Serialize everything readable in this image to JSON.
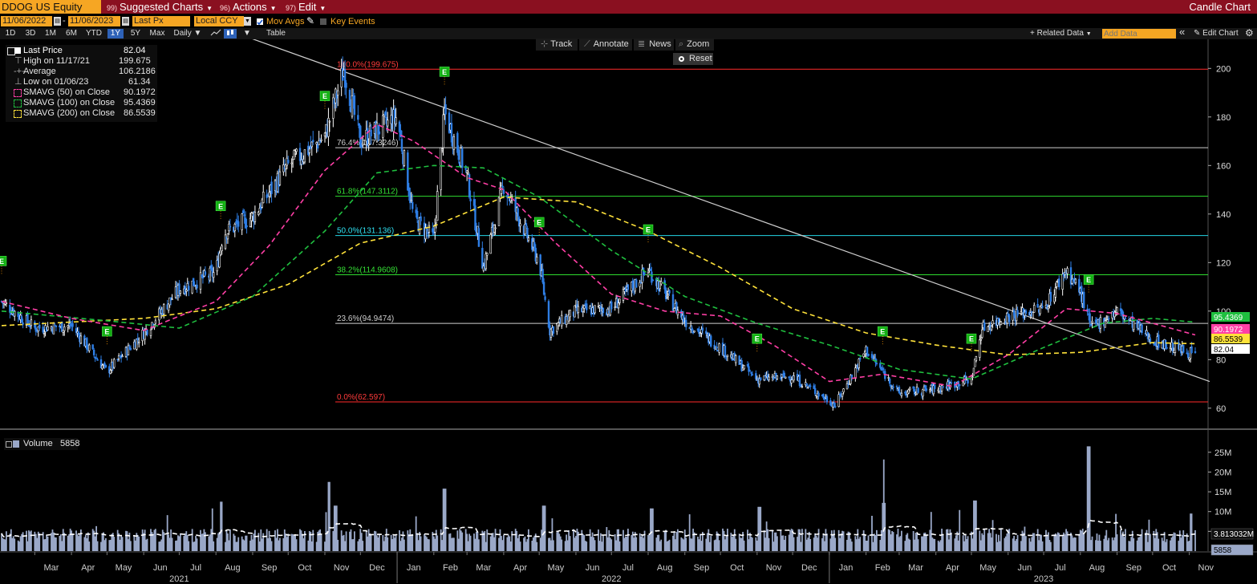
{
  "topbar": {
    "security": "DDOG US Equity",
    "menus": [
      {
        "num": "99)",
        "label": "Suggested Charts"
      },
      {
        "num": "96)",
        "label": "Actions"
      },
      {
        "num": "97)",
        "label": "Edit"
      }
    ],
    "title": "Candle Chart"
  },
  "settings": {
    "start_date": "11/06/2022",
    "end_date": "11/06/2023",
    "field": "Last Px",
    "currency": "Local CCY",
    "mov_avgs": "Mov Avgs",
    "key_events": "Key Events"
  },
  "periods": [
    "1D",
    "3D",
    "1M",
    "6M",
    "YTD",
    "1Y",
    "5Y",
    "Max"
  ],
  "selected_period": "1Y",
  "frequency": "Daily",
  "table_label": "Table",
  "right_controls": {
    "related_data": "+ Related Data",
    "add_data_placeholder": "Add Data",
    "collapse": "«",
    "edit_chart": "Edit Chart"
  },
  "tools": {
    "track": "Track",
    "annotate": "Annotate",
    "news": "News",
    "zoom": "Zoom",
    "reset": "Reset"
  },
  "legend": {
    "rows": [
      {
        "label": "Last Price",
        "value": "82.04"
      },
      {
        "label": "High on 11/17/21",
        "value": "199.675"
      },
      {
        "label": "Average",
        "value": "106.2186"
      },
      {
        "label": "Low on 01/06/23",
        "value": "61.34"
      },
      {
        "label": "SMAVG (50)  on Close",
        "value": "90.1972"
      },
      {
        "label": "SMAVG (100)  on Close",
        "value": "95.4369"
      },
      {
        "label": "SMAVG (200)  on Close",
        "value": "86.5539"
      }
    ]
  },
  "volume_legend": {
    "label": "Volume",
    "value": "5858"
  },
  "colors": {
    "up_candle": "#ffffff",
    "down_candle": "#2f7fe6",
    "sma50": "#ff3fa6",
    "sma100": "#1fbf3f",
    "sma200": "#ffe23a",
    "trendline": "#cfcfcf",
    "volume": "#9aa8c8",
    "topbar": "#8a1020",
    "accent": "#f6a623"
  },
  "chart_data": [
    {
      "type": "candlestick",
      "x_range": [
        "2021-02-01",
        "2023-11-06"
      ],
      "ylim": [
        52,
        212
      ],
      "y_ticks": [
        60,
        80,
        100,
        120,
        140,
        160,
        180,
        200
      ],
      "month_labels": [
        "Mar",
        "Apr",
        "May",
        "Jun",
        "Jul",
        "Aug",
        "Sep",
        "Oct",
        "Nov",
        "Dec",
        "Jan",
        "Feb",
        "Mar",
        "Apr",
        "May",
        "Jun",
        "Jul",
        "Aug",
        "Sep",
        "Oct",
        "Nov",
        "Dec",
        "Jan",
        "Feb",
        "Mar",
        "Apr",
        "May",
        "Jun",
        "Jul",
        "Aug",
        "Sep",
        "Oct",
        "Nov"
      ],
      "year_labels": [
        "2021",
        "2022",
        "2023"
      ],
      "close_path": [
        {
          "x": "2021-02-01",
          "y": 104
        },
        {
          "x": "2021-03-01",
          "y": 93
        },
        {
          "x": "2021-04-01",
          "y": 94
        },
        {
          "x": "2021-05-01",
          "y": 75
        },
        {
          "x": "2021-06-01",
          "y": 91
        },
        {
          "x": "2021-07-01",
          "y": 109
        },
        {
          "x": "2021-08-01",
          "y": 116
        },
        {
          "x": "2021-08-07",
          "y": 132
        },
        {
          "x": "2021-09-01",
          "y": 139
        },
        {
          "x": "2021-10-01",
          "y": 160
        },
        {
          "x": "2021-11-01",
          "y": 172
        },
        {
          "x": "2021-11-17",
          "y": 199.7
        },
        {
          "x": "2021-12-01",
          "y": 170
        },
        {
          "x": "2022-01-01",
          "y": 180
        },
        {
          "x": "2022-01-15",
          "y": 138
        },
        {
          "x": "2022-02-01",
          "y": 130
        },
        {
          "x": "2022-02-10",
          "y": 182
        },
        {
          "x": "2022-03-01",
          "y": 156
        },
        {
          "x": "2022-03-15",
          "y": 118
        },
        {
          "x": "2022-04-01",
          "y": 152
        },
        {
          "x": "2022-05-01",
          "y": 120
        },
        {
          "x": "2022-05-10",
          "y": 92
        },
        {
          "x": "2022-06-01",
          "y": 100
        },
        {
          "x": "2022-07-01",
          "y": 101
        },
        {
          "x": "2022-08-01",
          "y": 117
        },
        {
          "x": "2022-09-01",
          "y": 96
        },
        {
          "x": "2022-10-01",
          "y": 85
        },
        {
          "x": "2022-11-01",
          "y": 72
        },
        {
          "x": "2022-12-01",
          "y": 73
        },
        {
          "x": "2023-01-06",
          "y": 61.34
        },
        {
          "x": "2023-02-01",
          "y": 84
        },
        {
          "x": "2023-03-01",
          "y": 66
        },
        {
          "x": "2023-04-01",
          "y": 68
        },
        {
          "x": "2023-05-01",
          "y": 72
        },
        {
          "x": "2023-05-10",
          "y": 93
        },
        {
          "x": "2023-06-01",
          "y": 98
        },
        {
          "x": "2023-07-01",
          "y": 101
        },
        {
          "x": "2023-07-20",
          "y": 117
        },
        {
          "x": "2023-08-01",
          "y": 108
        },
        {
          "x": "2023-08-10",
          "y": 93
        },
        {
          "x": "2023-09-01",
          "y": 100
        },
        {
          "x": "2023-10-01",
          "y": 88
        },
        {
          "x": "2023-11-06",
          "y": 82.04
        }
      ],
      "sma50": [
        {
          "x": "2021-02-01",
          "y": 104
        },
        {
          "x": "2021-04-01",
          "y": 97
        },
        {
          "x": "2021-06-01",
          "y": 92
        },
        {
          "x": "2021-08-01",
          "y": 104
        },
        {
          "x": "2021-09-15",
          "y": 127
        },
        {
          "x": "2021-11-01",
          "y": 158
        },
        {
          "x": "2021-12-15",
          "y": 177
        },
        {
          "x": "2022-01-15",
          "y": 170
        },
        {
          "x": "2022-03-01",
          "y": 155
        },
        {
          "x": "2022-04-01",
          "y": 150
        },
        {
          "x": "2022-05-15",
          "y": 128
        },
        {
          "x": "2022-07-01",
          "y": 107
        },
        {
          "x": "2022-08-15",
          "y": 100
        },
        {
          "x": "2022-10-01",
          "y": 98
        },
        {
          "x": "2022-11-15",
          "y": 86
        },
        {
          "x": "2023-01-01",
          "y": 71
        },
        {
          "x": "2023-02-15",
          "y": 74
        },
        {
          "x": "2023-04-15",
          "y": 69
        },
        {
          "x": "2023-06-01",
          "y": 82
        },
        {
          "x": "2023-07-20",
          "y": 101
        },
        {
          "x": "2023-09-01",
          "y": 99
        },
        {
          "x": "2023-11-06",
          "y": 90.1972
        }
      ],
      "sma100": [
        {
          "x": "2021-02-01",
          "y": 100
        },
        {
          "x": "2021-05-01",
          "y": 96
        },
        {
          "x": "2021-07-01",
          "y": 93
        },
        {
          "x": "2021-09-01",
          "y": 106
        },
        {
          "x": "2021-11-01",
          "y": 133
        },
        {
          "x": "2021-12-15",
          "y": 157
        },
        {
          "x": "2022-02-01",
          "y": 160
        },
        {
          "x": "2022-03-15",
          "y": 159
        },
        {
          "x": "2022-05-01",
          "y": 147
        },
        {
          "x": "2022-07-01",
          "y": 125
        },
        {
          "x": "2022-09-01",
          "y": 106
        },
        {
          "x": "2022-11-01",
          "y": 95
        },
        {
          "x": "2023-01-01",
          "y": 86
        },
        {
          "x": "2023-03-01",
          "y": 76
        },
        {
          "x": "2023-05-01",
          "y": 72
        },
        {
          "x": "2023-07-01",
          "y": 85
        },
        {
          "x": "2023-08-20",
          "y": 95
        },
        {
          "x": "2023-10-01",
          "y": 97
        },
        {
          "x": "2023-11-06",
          "y": 95.4369
        }
      ],
      "sma200": [
        {
          "x": "2021-02-01",
          "y": 94
        },
        {
          "x": "2021-06-01",
          "y": 97
        },
        {
          "x": "2021-08-01",
          "y": 101
        },
        {
          "x": "2021-10-01",
          "y": 111
        },
        {
          "x": "2021-12-01",
          "y": 128
        },
        {
          "x": "2022-02-01",
          "y": 135
        },
        {
          "x": "2022-04-01",
          "y": 147
        },
        {
          "x": "2022-06-01",
          "y": 145
        },
        {
          "x": "2022-08-01",
          "y": 133
        },
        {
          "x": "2022-10-01",
          "y": 118
        },
        {
          "x": "2022-12-01",
          "y": 101
        },
        {
          "x": "2023-02-01",
          "y": 91
        },
        {
          "x": "2023-04-01",
          "y": 86
        },
        {
          "x": "2023-06-01",
          "y": 82
        },
        {
          "x": "2023-08-01",
          "y": 83
        },
        {
          "x": "2023-10-01",
          "y": 87
        },
        {
          "x": "2023-11-06",
          "y": 86.5539
        }
      ],
      "trendline": [
        {
          "x": "2021-11-17",
          "y": 199.675
        },
        {
          "x": "2023-11-06",
          "y": 71
        }
      ],
      "fib_levels": [
        {
          "label": "100.0%(199.675)",
          "value": 199.675,
          "color": "#ff2a2a",
          "text_color": "#ff3b3b"
        },
        {
          "label": "76.4%(167.3246)",
          "value": 167.3246,
          "color": "#cfcfcf",
          "text_color": "#cfcfcf"
        },
        {
          "label": "61.8%(147.3112)",
          "value": 147.3112,
          "color": "#2fdc2f",
          "text_color": "#35e035"
        },
        {
          "label": "50.0%(131.136)",
          "value": 131.136,
          "color": "#24d6e6",
          "text_color": "#2fe0f0"
        },
        {
          "label": "38.2%(114.9608)",
          "value": 114.9608,
          "color": "#2fdc2f",
          "text_color": "#35e035"
        },
        {
          "label": "23.6%(94.9474)",
          "value": 94.9474,
          "color": "#cfcfcf",
          "text_color": "#cfcfcf"
        },
        {
          "label": "0.0%(62.597)",
          "value": 62.597,
          "color": "#ff2a2a",
          "text_color": "#ff3b3b"
        }
      ],
      "earnings_markers": [
        {
          "x": "2021-02-01",
          "label": "E"
        },
        {
          "x": "2021-05-01",
          "label": "E"
        },
        {
          "x": "2021-08-05",
          "label": "E"
        },
        {
          "x": "2021-11-01",
          "label": "E"
        },
        {
          "x": "2022-02-10",
          "label": "E"
        },
        {
          "x": "2022-05-01",
          "label": "E"
        },
        {
          "x": "2022-08-01",
          "label": "E"
        },
        {
          "x": "2022-11-01",
          "label": "E"
        },
        {
          "x": "2023-02-15",
          "label": "E"
        },
        {
          "x": "2023-05-01",
          "label": "E"
        },
        {
          "x": "2023-08-08",
          "label": "E"
        }
      ],
      "right_tags": [
        {
          "value": 95.4369,
          "label": "95.4369",
          "bg": "#1fbf3f",
          "fg": "#ffffff"
        },
        {
          "value": 90.1972,
          "label": "90.1972",
          "bg": "#ff3fa6",
          "fg": "#ffffff"
        },
        {
          "value": 86.5539,
          "label": "86.5539",
          "bg": "#ffe23a",
          "fg": "#000000"
        },
        {
          "value": 82.04,
          "label": "82.04",
          "bg": "#ffffff",
          "fg": "#000000"
        }
      ]
    },
    {
      "type": "bar",
      "name": "Volume",
      "ylim": [
        0,
        28
      ],
      "y_unit": "M",
      "y_ticks": [
        {
          "v": 5,
          "label": "5M"
        },
        {
          "v": 10,
          "label": "10M"
        },
        {
          "v": 15,
          "label": "15M"
        },
        {
          "v": 20,
          "label": "20M"
        },
        {
          "v": 25,
          "label": "25M"
        }
      ],
      "typical_volume_millions": 3.8,
      "spikes": [
        {
          "x": "2021-08-06",
          "v": 12.5
        },
        {
          "x": "2021-11-05",
          "v": 17.5
        },
        {
          "x": "2021-11-10",
          "v": 11.5
        },
        {
          "x": "2022-02-10",
          "v": 15.8
        },
        {
          "x": "2022-05-05",
          "v": 11.5
        },
        {
          "x": "2022-08-04",
          "v": 10.8
        },
        {
          "x": "2022-11-03",
          "v": 11.2
        },
        {
          "x": "2023-02-16",
          "v": 12.2
        },
        {
          "x": "2023-05-04",
          "v": 12.8
        },
        {
          "x": "2023-08-08",
          "v": 26.5
        },
        {
          "x": "2023-11-03",
          "v": 9.5
        }
      ],
      "last_tags": [
        {
          "label": "3.813032M",
          "bg": "#111111",
          "fg": "#ffffff",
          "value": 3.813032
        },
        {
          "label": "5858",
          "bg": "#9aa8c8",
          "fg": "#000000",
          "value": 1.2
        }
      ]
    }
  ]
}
